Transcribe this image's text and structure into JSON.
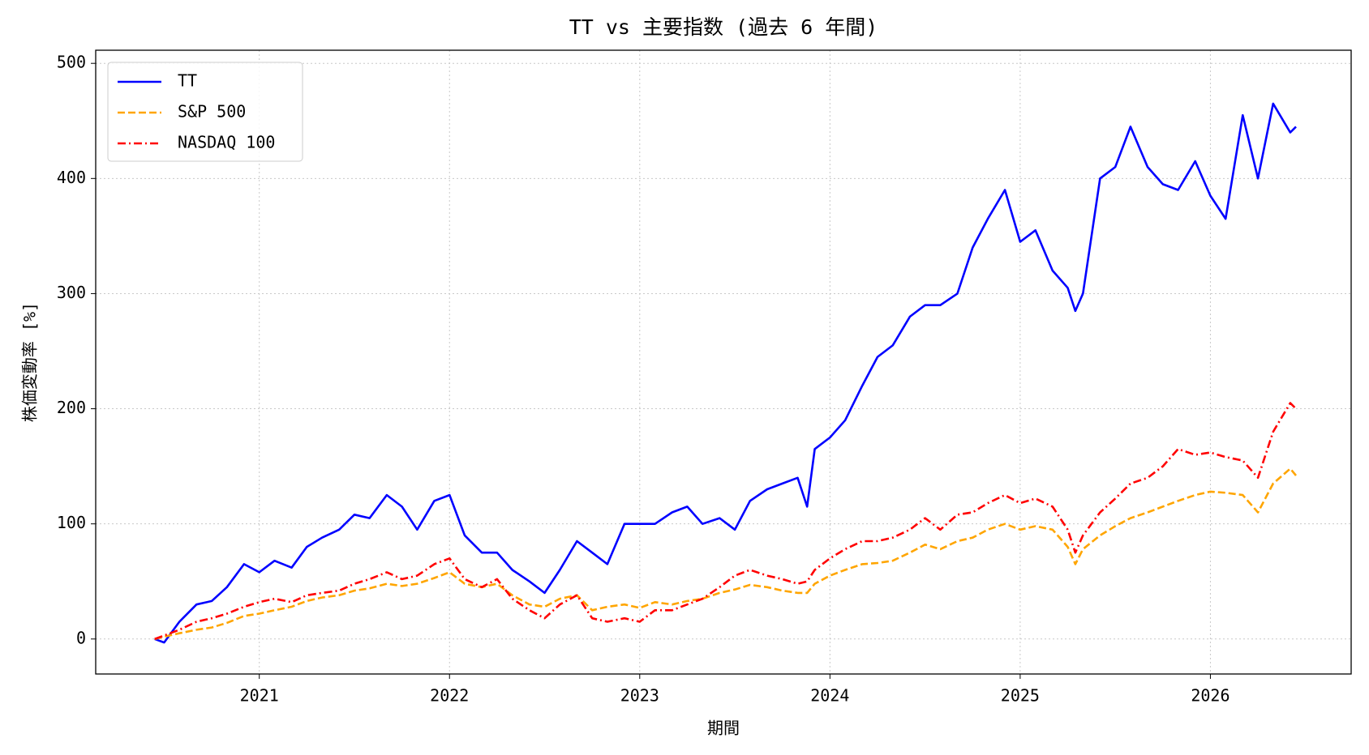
{
  "chart_data": {
    "type": "line",
    "title": "TT vs 主要指数 (過去 6 年間)",
    "xlabel": "期間",
    "ylabel": "株価変動率 [%]",
    "x": [
      2020.45,
      2020.5,
      2020.58,
      2020.67,
      2020.75,
      2020.83,
      2020.92,
      2021.0,
      2021.08,
      2021.17,
      2021.25,
      2021.33,
      2021.42,
      2021.5,
      2021.58,
      2021.67,
      2021.75,
      2021.83,
      2021.92,
      2022.0,
      2022.08,
      2022.17,
      2022.25,
      2022.33,
      2022.42,
      2022.5,
      2022.58,
      2022.67,
      2022.75,
      2022.83,
      2022.92,
      2023.0,
      2023.08,
      2023.17,
      2023.25,
      2023.33,
      2023.42,
      2023.5,
      2023.58,
      2023.67,
      2023.75,
      2023.83,
      2023.88,
      2023.92,
      2024.0,
      2024.08,
      2024.17,
      2024.25,
      2024.33,
      2024.42,
      2024.5,
      2024.58,
      2024.67,
      2024.75,
      2024.83,
      2024.92,
      2025.0,
      2025.08,
      2025.17,
      2025.25,
      2025.29,
      2025.33,
      2025.42,
      2025.5,
      2025.58,
      2025.67,
      2025.75,
      2025.83,
      2025.92,
      2026.0,
      2026.08,
      2026.17,
      2026.25,
      2026.33,
      2026.42,
      2026.45
    ],
    "series": [
      {
        "name": "TT",
        "color": "#0000ff",
        "linestyle": "solid",
        "values": [
          0,
          -3,
          15,
          30,
          33,
          45,
          65,
          58,
          68,
          62,
          80,
          88,
          95,
          108,
          105,
          125,
          115,
          95,
          120,
          125,
          90,
          75,
          75,
          60,
          50,
          40,
          60,
          85,
          75,
          65,
          100,
          100,
          100,
          110,
          115,
          100,
          105,
          95,
          120,
          130,
          135,
          140,
          115,
          165,
          175,
          190,
          220,
          245,
          255,
          280,
          290,
          290,
          300,
          340,
          365,
          390,
          345,
          355,
          320,
          305,
          285,
          300,
          400,
          410,
          445,
          410,
          395,
          390,
          415,
          385,
          365,
          455,
          400,
          465,
          440,
          445
        ]
      },
      {
        "name": "S&P 500",
        "color": "#ffa500",
        "linestyle": "dashed",
        "values": [
          0,
          2,
          5,
          8,
          10,
          14,
          20,
          22,
          25,
          28,
          33,
          36,
          38,
          42,
          44,
          48,
          46,
          48,
          53,
          58,
          48,
          45,
          48,
          38,
          30,
          28,
          35,
          38,
          25,
          28,
          30,
          27,
          32,
          30,
          33,
          35,
          40,
          43,
          47,
          45,
          42,
          40,
          40,
          48,
          55,
          60,
          65,
          66,
          68,
          75,
          82,
          78,
          85,
          88,
          95,
          100,
          95,
          98,
          95,
          80,
          65,
          78,
          90,
          98,
          105,
          110,
          115,
          120,
          125,
          128,
          127,
          125,
          110,
          135,
          148,
          142
        ]
      },
      {
        "name": "NASDAQ 100",
        "color": "#ff0000",
        "linestyle": "dashdot",
        "values": [
          0,
          3,
          8,
          15,
          18,
          22,
          28,
          32,
          35,
          32,
          38,
          40,
          42,
          48,
          52,
          58,
          52,
          55,
          65,
          70,
          52,
          45,
          52,
          35,
          25,
          18,
          30,
          38,
          18,
          15,
          18,
          15,
          25,
          25,
          30,
          35,
          45,
          55,
          60,
          55,
          52,
          48,
          50,
          60,
          70,
          78,
          85,
          85,
          88,
          95,
          105,
          95,
          108,
          110,
          118,
          125,
          118,
          122,
          115,
          95,
          75,
          90,
          110,
          122,
          135,
          140,
          150,
          165,
          160,
          162,
          158,
          155,
          140,
          180,
          205,
          200
        ]
      }
    ],
    "xlim": [
      2020.14,
      2026.74
    ],
    "ylim": [
      -30.4,
      511.4
    ],
    "xticks": [
      2021,
      2022,
      2023,
      2024,
      2025,
      2026
    ],
    "yticks": [
      0,
      100,
      200,
      300,
      400,
      500
    ],
    "grid": true,
    "legend": "upper left"
  }
}
